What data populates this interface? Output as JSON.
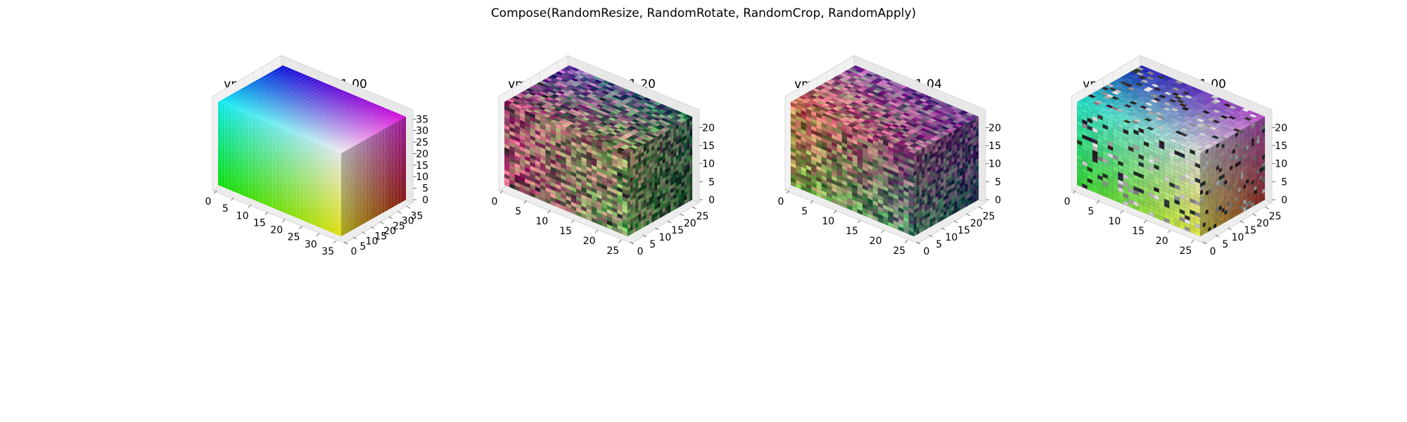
{
  "figure": {
    "suptitle": "Compose(RandomResize, RandomRotate, RandomCrop, RandomApply)"
  },
  "chart_data": [
    {
      "type": "voxel-3d",
      "title": "vmin: 0.00 | vmax: 1.00",
      "vmin": 0.0,
      "vmax": 1.0,
      "grid_size": [
        36,
        36,
        36
      ],
      "xlim": [
        0,
        36
      ],
      "ylim": [
        0,
        36
      ],
      "zlim": [
        0,
        36
      ],
      "x_ticks": [
        "0",
        "5",
        "10",
        "15",
        "20",
        "25",
        "30",
        "35"
      ],
      "y_ticks": [
        "0",
        "5",
        "10",
        "15",
        "20",
        "25",
        "30",
        "35"
      ],
      "z_ticks": [
        "0",
        "5",
        "10",
        "15",
        "20",
        "25",
        "30",
        "35"
      ],
      "texture": "smooth",
      "colors": {
        "top_back_left": "#0000cc",
        "top_back_right": "#cc00cc",
        "top_front_left": "#00e6e6",
        "top_front_right": "#e6e6e6",
        "bottom_front_left": "#00dd00",
        "bottom_front_right": "#dddd00",
        "bottom_back_right": "#aa0000",
        "bottom_back_left": "#000000"
      },
      "noise": 0,
      "black_speckles": 0,
      "gray_speckles": 0
    },
    {
      "type": "voxel-3d",
      "title": "vmin: -0.20 | vmax: 1.20",
      "vmin": -0.2,
      "vmax": 1.2,
      "grid_size": [
        24,
        24,
        22
      ],
      "xlim": [
        0,
        26
      ],
      "ylim": [
        0,
        26
      ],
      "zlim": [
        0,
        23
      ],
      "x_ticks": [
        "0",
        "5",
        "10",
        "15",
        "20",
        "25"
      ],
      "y_ticks": [
        "0",
        "5",
        "10",
        "15",
        "20",
        "25"
      ],
      "z_ticks": [
        "0",
        "5",
        "10",
        "15",
        "20"
      ],
      "texture": "noisy",
      "colors": {
        "top_back_left": "#5a4aa0",
        "top_back_right": "#3a6a5a",
        "top_front_left": "#9a4a6a",
        "top_front_right": "#8a8a5a",
        "bottom_front_left": "#b04a6a",
        "bottom_front_right": "#6aa05a",
        "bottom_back_right": "#2a5a3a",
        "bottom_back_left": "#303030"
      },
      "noise": 0.28,
      "black_speckles": 0.02,
      "gray_speckles": 0
    },
    {
      "type": "voxel-3d",
      "title": "vmin: -0.19 | vmax: 1.04",
      "vmin": -0.19,
      "vmax": 1.04,
      "grid_size": [
        24,
        24,
        22
      ],
      "xlim": [
        0,
        26
      ],
      "ylim": [
        0,
        26
      ],
      "zlim": [
        0,
        23
      ],
      "x_ticks": [
        "0",
        "5",
        "10",
        "15",
        "20",
        "25"
      ],
      "y_ticks": [
        "0",
        "5",
        "10",
        "15",
        "20",
        "25"
      ],
      "z_ticks": [
        "0",
        "5",
        "10",
        "15",
        "20"
      ],
      "texture": "noisy",
      "colors": {
        "top_back_left": "#8a5aa0",
        "top_back_right": "#6a3a8a",
        "top_front_left": "#c06a4a",
        "top_front_right": "#8a4a7a",
        "bottom_front_left": "#7aa040",
        "bottom_front_right": "#4a8a6a",
        "bottom_back_right": "#2a4a6a",
        "bottom_back_left": "#303030"
      },
      "noise": 0.26,
      "black_speckles": 0.0,
      "gray_speckles": 0
    },
    {
      "type": "voxel-3d",
      "title": "vmin: 0.00 | vmax: 1.00",
      "vmin": 0.0,
      "vmax": 1.0,
      "grid_size": [
        24,
        24,
        22
      ],
      "xlim": [
        0,
        26
      ],
      "ylim": [
        0,
        26
      ],
      "zlim": [
        0,
        23
      ],
      "x_ticks": [
        "0",
        "5",
        "10",
        "15",
        "20",
        "25"
      ],
      "y_ticks": [
        "0",
        "5",
        "10",
        "15",
        "20",
        "25"
      ],
      "z_ticks": [
        "0",
        "5",
        "10",
        "15",
        "20"
      ],
      "texture": "speckled",
      "colors": {
        "top_back_left": "#1a1ab0",
        "top_back_right": "#b050c0",
        "top_front_left": "#20e0c0",
        "top_front_right": "#d0d0d0",
        "bottom_front_left": "#30d030",
        "bottom_front_right": "#e0e040",
        "bottom_back_right": "#b03030",
        "bottom_back_left": "#202020"
      },
      "noise": 0.05,
      "black_speckles": 0.07,
      "gray_speckles": 0.09
    }
  ]
}
